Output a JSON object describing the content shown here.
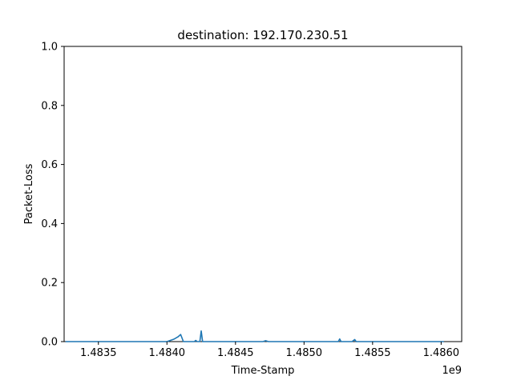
{
  "chart_data": {
    "type": "line",
    "title": "destination: 192.170.230.51",
    "xlabel": "Time-Stamp",
    "ylabel": "Packet-Loss",
    "x_offset_label": "1e9",
    "xlim": [
      1.48325,
      1.48615
    ],
    "ylim": [
      0.0,
      1.0
    ],
    "x_ticks": [
      1.4835,
      1.484,
      1.4845,
      1.485,
      1.4855,
      1.486
    ],
    "x_tick_labels": [
      "1.4835",
      "1.4840",
      "1.4845",
      "1.4850",
      "1.4855",
      "1.4860"
    ],
    "y_ticks": [
      0.0,
      0.2,
      0.4,
      0.6,
      0.8,
      1.0
    ],
    "y_tick_labels": [
      "0.0",
      "0.2",
      "0.4",
      "0.6",
      "0.8",
      "1.0"
    ],
    "grid": false,
    "series": [
      {
        "color": "#1f77b4",
        "x": [
          1.48326,
          1.4834,
          1.4836,
          1.4838,
          1.484,
          1.48405,
          1.48408,
          1.4841,
          1.48412,
          1.4842,
          1.48421,
          1.48422,
          1.48424,
          1.48425,
          1.48426,
          1.48428,
          1.4844,
          1.4846,
          1.4847,
          1.48472,
          1.48474,
          1.4848,
          1.485,
          1.4852,
          1.48525,
          1.48526,
          1.48527,
          1.4853,
          1.48535,
          1.48537,
          1.48538,
          1.4854,
          1.4856,
          1.4858,
          1.486,
          1.48602
        ],
        "y": [
          0.0,
          0.0,
          0.0,
          0.0,
          0.0,
          0.008,
          0.016,
          0.024,
          0.0,
          0.0,
          0.004,
          0.0,
          0.0,
          0.036,
          0.0,
          0.0,
          0.0,
          0.0,
          0.0,
          0.003,
          0.0,
          0.0,
          0.0,
          0.0,
          0.0,
          0.009,
          0.0,
          0.0,
          0.0,
          0.007,
          0.0,
          0.0,
          0.0,
          0.0,
          0.0,
          0.0
        ]
      }
    ]
  }
}
